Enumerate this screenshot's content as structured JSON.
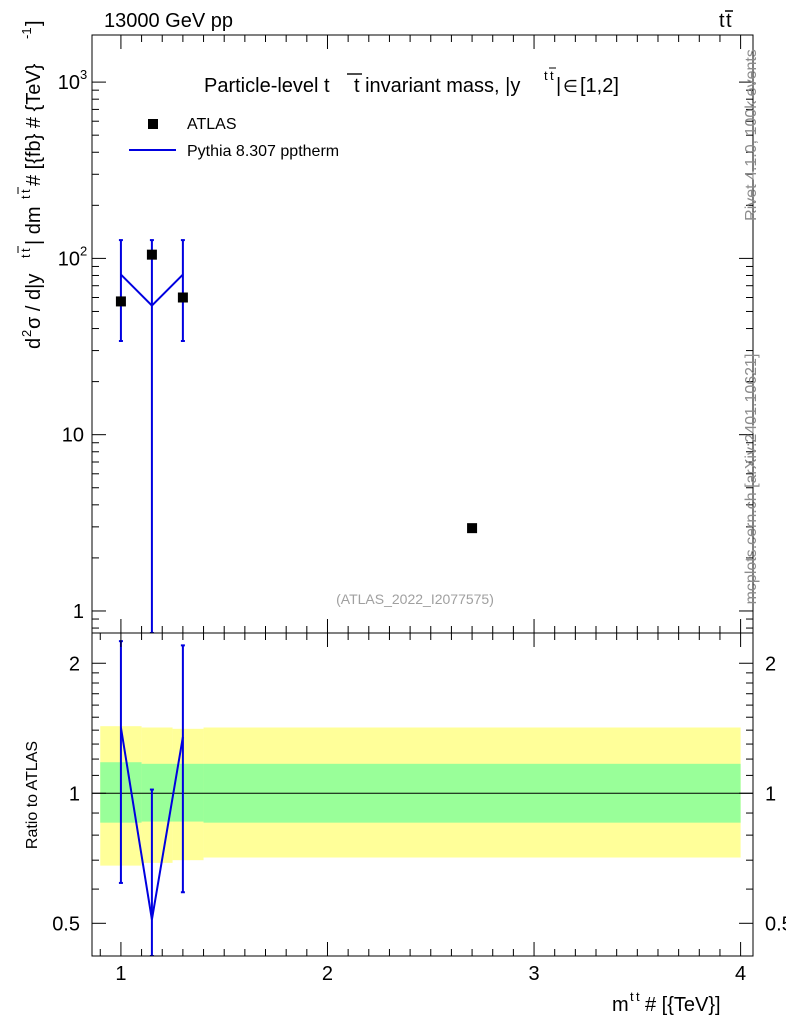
{
  "header": {
    "left": "13000 GeV pp",
    "right_main": "t",
    "right_bar": "t"
  },
  "side_labels": {
    "rivet": "Rivet 4.1.0,  100k events",
    "mcplots": "mcplots.cern.ch [arXiv:2401.10621]"
  },
  "chart_data": [
    {
      "type": "scatter",
      "panel": "main",
      "title_parts": [
        "Particle-level t",
        "t invariant mass, |y",
        "t",
        "t",
        "|",
        "∈",
        "[1,2]"
      ],
      "ylabel_parts": [
        "d",
        "2",
        "σ / d|y",
        "t",
        "t",
        "| dm",
        "t",
        "t",
        " # [{fb} # {TeV}",
        "-1",
        "]"
      ],
      "yscale": "log",
      "ylim": [
        0.75,
        1850
      ],
      "xlim": [
        0.86,
        4.06
      ],
      "yticks": [
        {
          "value": 1,
          "label": "1"
        },
        {
          "value": 10,
          "label": "10"
        },
        {
          "value": 100,
          "label": "10",
          "exp": "2"
        },
        {
          "value": 1000,
          "label": "10",
          "exp": "3"
        }
      ],
      "series": [
        {
          "name": "ATLAS",
          "kind": "points",
          "color": "#000000",
          "x": [
            1.0,
            1.15,
            1.3,
            2.7
          ],
          "y": [
            57,
            105,
            60,
            2.95
          ]
        },
        {
          "name": "Pythia 8.307 pptherm",
          "kind": "line",
          "color": "#0000e0",
          "x": [
            1.0,
            1.15,
            1.3
          ],
          "y": [
            81,
            54,
            81
          ],
          "err_up": [
            127,
            127,
            127
          ],
          "err_down": [
            34,
            0.75,
            34
          ]
        }
      ],
      "watermark": "(ATLAS_2022_I2077575)"
    },
    {
      "type": "line",
      "panel": "ratio",
      "ylabel": "Ratio to ATLAS",
      "ylim": [
        0.42,
        2.35
      ],
      "yscale": "log",
      "xlim": [
        0.86,
        4.06
      ],
      "xlabel_parts": [
        "m",
        "t",
        "t",
        " # [{TeV}]"
      ],
      "xticks": [
        1,
        2,
        3,
        4
      ],
      "yticks": [
        {
          "value": 0.5,
          "label": "0.5"
        },
        {
          "value": 1,
          "label": "1"
        },
        {
          "value": 2,
          "label": "2"
        }
      ],
      "bands": [
        {
          "name": "total-uncertainty",
          "color": "#ffff99",
          "bins": [
            [
              0.9,
              1.1,
              0.68,
              1.43
            ],
            [
              1.1,
              1.25,
              0.69,
              1.42
            ],
            [
              1.25,
              1.4,
              0.7,
              1.41
            ],
            [
              1.4,
              4.0,
              0.71,
              1.42
            ]
          ]
        },
        {
          "name": "stat-uncertainty",
          "color": "#99ff99",
          "bins": [
            [
              0.9,
              1.1,
              0.855,
              1.18
            ],
            [
              1.1,
              1.25,
              0.86,
              1.17
            ],
            [
              1.25,
              1.4,
              0.86,
              1.17
            ],
            [
              1.4,
              4.0,
              0.855,
              1.17
            ]
          ]
        }
      ],
      "reference": 1.0,
      "series": [
        {
          "name": "Pythia 8.307 pptherm",
          "color": "#0000e0",
          "x": [
            1.0,
            1.15,
            1.3
          ],
          "y": [
            1.42,
            0.51,
            1.35
          ],
          "err_up": [
            2.25,
            1.02,
            2.2
          ],
          "err_down": [
            0.62,
            0.42,
            0.59
          ]
        }
      ]
    }
  ]
}
